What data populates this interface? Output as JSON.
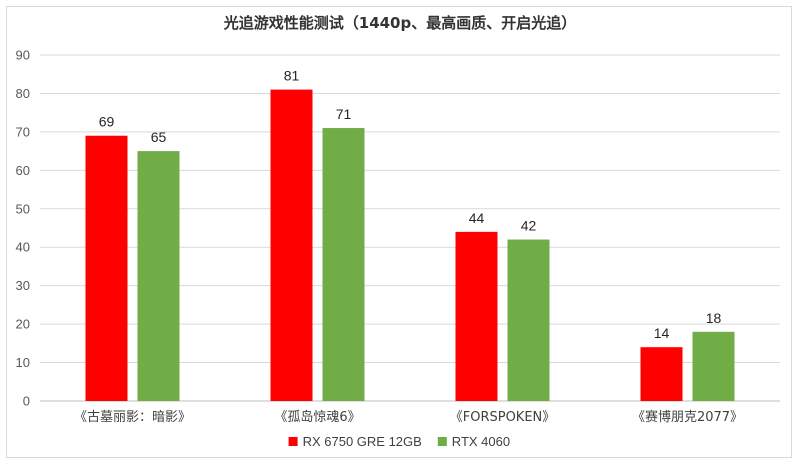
{
  "chart_data": {
    "type": "bar",
    "title": "光追游戏性能测试（1440p、最高画质、开启光追）",
    "categories": [
      "《古墓丽影：暗影》",
      "《孤岛惊魂6》",
      "《FORSPOKEN》",
      "《赛博朋克2077》"
    ],
    "series": [
      {
        "name": "RX 6750 GRE 12GB",
        "color": "#ff0000",
        "values": [
          69,
          81,
          44,
          14
        ]
      },
      {
        "name": "RTX 4060",
        "color": "#70ad47",
        "values": [
          65,
          71,
          42,
          18
        ]
      }
    ],
    "ylim": [
      0,
      90
    ],
    "yticks": [
      0,
      10,
      20,
      30,
      40,
      50,
      60,
      70,
      80,
      90
    ],
    "grid": true,
    "legend_position": "bottom",
    "xlabel": "",
    "ylabel": ""
  }
}
